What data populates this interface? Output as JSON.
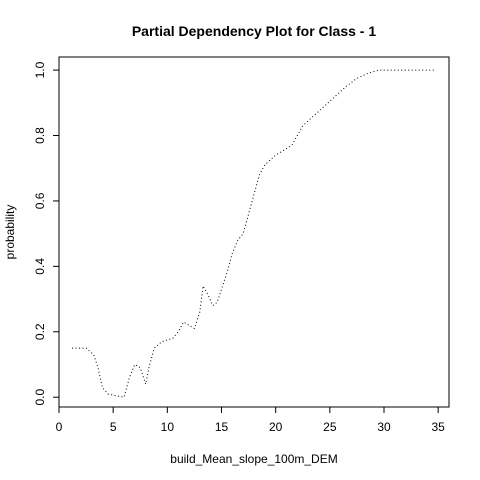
{
  "chart_data": {
    "type": "line",
    "title": "Partial Dependency Plot for Class - 1",
    "xlabel": "build_Mean_slope_100m_DEM",
    "ylabel": "probability",
    "xlim": [
      0,
      36
    ],
    "ylim": [
      -0.03,
      1.04
    ],
    "x_ticks": [
      0,
      5,
      10,
      15,
      20,
      25,
      30,
      35
    ],
    "y_ticks": [
      0.0,
      0.2,
      0.4,
      0.6,
      0.8,
      1.0
    ],
    "x_tick_labels": [
      "0",
      "5",
      "10",
      "15",
      "20",
      "25",
      "30",
      "35"
    ],
    "y_tick_labels": [
      "0.0",
      "0.2",
      "0.4",
      "0.6",
      "0.8",
      "1.0"
    ],
    "grid": false,
    "line_style": "dotted",
    "series": [
      {
        "x": [
          1.2,
          2.5,
          3.2,
          3.6,
          4.0,
          4.5,
          5.2,
          6.0,
          6.5,
          7.0,
          7.5,
          8.0,
          8.3,
          8.8,
          9.5,
          10.5,
          11.0,
          11.5,
          12.0,
          12.5,
          13.0,
          13.3,
          13.8,
          14.2,
          14.6,
          15.0,
          15.5,
          16.0,
          16.5,
          17.0,
          17.5,
          18.0,
          18.5,
          19.0,
          20.0,
          21.0,
          21.5,
          22.0,
          22.5,
          23.5,
          24.5,
          25.5,
          26.5,
          27.5,
          28.5,
          29.5,
          30.5,
          32.0,
          33.5,
          34.8
        ],
        "y": [
          0.15,
          0.15,
          0.13,
          0.09,
          0.03,
          0.01,
          0.005,
          0.0,
          0.06,
          0.1,
          0.09,
          0.04,
          0.09,
          0.15,
          0.17,
          0.18,
          0.2,
          0.23,
          0.22,
          0.21,
          0.26,
          0.34,
          0.31,
          0.28,
          0.29,
          0.33,
          0.38,
          0.44,
          0.48,
          0.5,
          0.56,
          0.62,
          0.68,
          0.71,
          0.74,
          0.76,
          0.77,
          0.8,
          0.83,
          0.86,
          0.89,
          0.92,
          0.95,
          0.975,
          0.99,
          1.0,
          1.0,
          1.0,
          1.0,
          1.0
        ]
      }
    ]
  }
}
